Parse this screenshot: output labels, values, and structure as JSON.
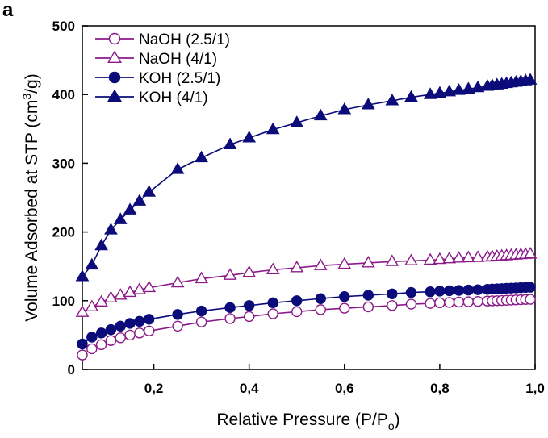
{
  "panel_label": "a",
  "chart_data": {
    "type": "line",
    "title": "",
    "xlabel": "Relative Pressure (P/P",
    "xlabel_sub": "o",
    "xlabel_tail": ")",
    "ylabel": "Volume Adsorbed at STP (cm",
    "ylabel_sup": "3",
    "ylabel_tail": "/g)",
    "xlim": [
      0.05,
      1.0
    ],
    "ylim": [
      0,
      500
    ],
    "xticks": [
      0.2,
      0.4,
      0.6,
      0.8,
      1.0
    ],
    "xtick_labels": [
      "0,2",
      "0,4",
      "0,6",
      "0,8",
      "1,0"
    ],
    "yticks": [
      0,
      100,
      200,
      300,
      400,
      500
    ],
    "ytick_labels": [
      "0",
      "100",
      "200",
      "300",
      "400",
      "500"
    ],
    "grid": false,
    "legend_position": "top-left",
    "colors": {
      "naoh": "#8b1a89",
      "koh": "#0b0b7a"
    },
    "x": [
      0.05,
      0.07,
      0.09,
      0.11,
      0.13,
      0.15,
      0.17,
      0.19,
      0.25,
      0.3,
      0.36,
      0.4,
      0.45,
      0.5,
      0.55,
      0.6,
      0.65,
      0.7,
      0.74,
      0.78,
      0.8,
      0.82,
      0.84,
      0.86,
      0.88,
      0.9,
      0.91,
      0.92,
      0.93,
      0.94,
      0.95,
      0.96,
      0.97,
      0.98,
      0.99
    ],
    "series": [
      {
        "name": "NaOH (2.5/1)",
        "marker": "circle",
        "filled": false,
        "color": "#8b1a89",
        "values": [
          21,
          30,
          36,
          42,
          46,
          50,
          53,
          56,
          63,
          69,
          74,
          77,
          81,
          84,
          87,
          89,
          91,
          93,
          95,
          96,
          97,
          97.5,
          98,
          98.5,
          99,
          99.5,
          99.8,
          100,
          100.3,
          100.6,
          100.9,
          101.2,
          101.5,
          101.8,
          102
        ]
      },
      {
        "name": "NaOH (4/1)",
        "marker": "triangle",
        "filled": false,
        "color": "#8b1a89",
        "values": [
          83,
          91,
          98,
          104,
          108,
          112,
          116,
          119,
          126,
          132,
          137,
          141,
          145,
          148,
          151,
          153,
          155,
          157,
          158,
          159,
          160,
          161,
          162,
          162.5,
          163,
          163.5,
          164,
          164.5,
          165,
          165.5,
          166,
          166.5,
          167,
          167.5,
          168
        ]
      },
      {
        "name": "KOH (2.5/1)",
        "marker": "circle",
        "filled": true,
        "color": "#0b0b7a",
        "values": [
          37,
          47,
          53,
          58,
          63,
          67,
          70,
          73,
          80,
          85,
          90,
          93,
          97,
          100,
          103,
          106,
          108,
          110,
          112,
          113,
          114,
          114.5,
          115,
          115.5,
          116,
          116.5,
          117,
          117.3,
          117.6,
          118,
          118.3,
          118.6,
          119,
          119.3,
          119.5
        ]
      },
      {
        "name": "KOH (4/1)",
        "marker": "triangle",
        "filled": true,
        "color": "#0b0b7a",
        "values": [
          135,
          152,
          180,
          203,
          218,
          232,
          245,
          258,
          291,
          308,
          327,
          337,
          349,
          359,
          369,
          378,
          385,
          391,
          396,
          400,
          402,
          404,
          406,
          408,
          410,
          412,
          413,
          414,
          415,
          416,
          417,
          418,
          419,
          420,
          421
        ]
      }
    ]
  }
}
